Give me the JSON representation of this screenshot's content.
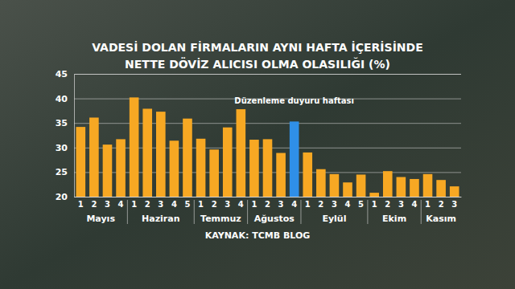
{
  "chart_data": {
    "type": "bar",
    "title": [
      "VADESİ DOLAN FİRMALARIN AYNI HAFTA İÇERİSİNDE",
      "NETTE DÖVİZ ALICISI OLMA OLASILIĞI (%)"
    ],
    "source": "KAYNAK: TCMB BLOG",
    "categories": [
      "1",
      "2",
      "3",
      "4",
      "1",
      "2",
      "3",
      "4",
      "5",
      "1",
      "2",
      "3",
      "4",
      "1",
      "2",
      "3",
      "4",
      "1",
      "2",
      "3",
      "4",
      "5",
      "1",
      "2",
      "3",
      "4",
      "1",
      "2",
      "3"
    ],
    "values": [
      34.2,
      36.1,
      30.6,
      31.7,
      40.2,
      37.9,
      37.3,
      31.4,
      35.9,
      31.8,
      29.6,
      34.1,
      37.8,
      31.6,
      31.7,
      28.9,
      35.3,
      29.0,
      25.6,
      24.6,
      22.9,
      24.5,
      20.8,
      25.2,
      24.0,
      23.6,
      24.6,
      23.4,
      22.1
    ],
    "colors": [
      "#f7a823",
      "#f7a823",
      "#f7a823",
      "#f7a823",
      "#f7a823",
      "#f7a823",
      "#f7a823",
      "#f7a823",
      "#f7a823",
      "#f7a823",
      "#f7a823",
      "#f7a823",
      "#f7a823",
      "#f7a823",
      "#f7a823",
      "#f7a823",
      "#2f8fe8",
      "#f7a823",
      "#f7a823",
      "#f7a823",
      "#f7a823",
      "#f7a823",
      "#f7a823",
      "#f7a823",
      "#f7a823",
      "#f7a823",
      "#f7a823",
      "#f7a823",
      "#f7a823"
    ],
    "groups": [
      {
        "name": "Mayıs",
        "size": 4
      },
      {
        "name": "Haziran",
        "size": 5
      },
      {
        "name": "Temmuz",
        "size": 4
      },
      {
        "name": "Ağustos",
        "size": 4
      },
      {
        "name": "Eylül",
        "size": 5
      },
      {
        "name": "Ekim",
        "size": 4
      },
      {
        "name": "Kasım",
        "size": 3
      }
    ],
    "annotations": [
      {
        "text": "Düzenleme duyuru haftası",
        "index": 16
      }
    ],
    "ylim": [
      20,
      45
    ],
    "yticks": [
      20,
      25,
      30,
      35,
      40,
      45
    ],
    "grid": true
  }
}
